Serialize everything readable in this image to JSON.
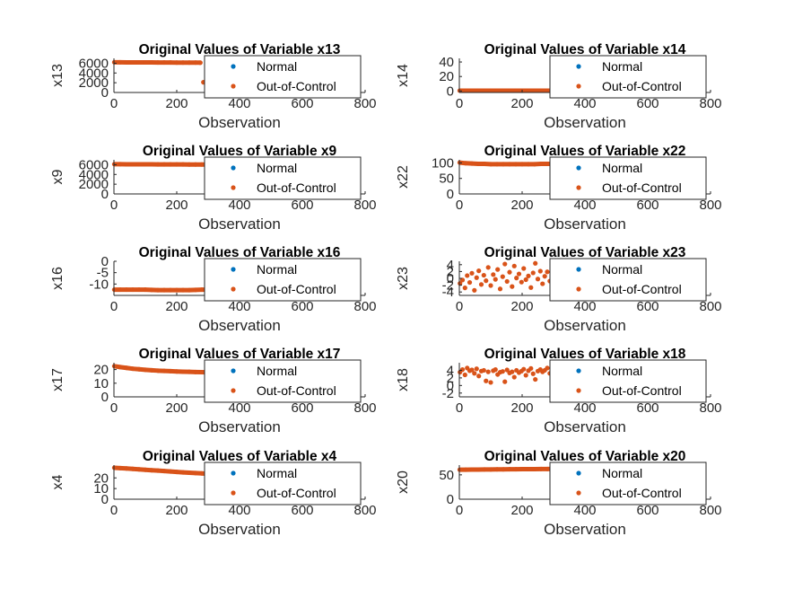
{
  "chart_data": [
    {
      "type": "scatter",
      "title": "Original Values of Variable x13",
      "xlabel": "Observation",
      "ylabel": "x13",
      "xlim": [
        0,
        800
      ],
      "ylim": [
        0,
        7000
      ],
      "xticks": [
        "0",
        "200",
        "400",
        "600",
        "800"
      ],
      "yticks": [
        0,
        2000,
        4000,
        6000
      ],
      "ytick_labels": [
        "0",
        "2000",
        "4000",
        "6000"
      ],
      "legend": [
        "Normal",
        "Out-of-Control"
      ],
      "legend_position": "top-right",
      "series": [
        {
          "name": "Normal",
          "color": "#0072bd",
          "x": [],
          "y": []
        },
        {
          "name": "Out-of-Control",
          "color": "#d95319",
          "x": [
            1,
            20,
            40,
            60,
            80,
            100,
            120,
            140,
            160,
            180,
            200,
            220,
            240,
            260,
            275,
            285
          ],
          "y": [
            6200,
            6190,
            6180,
            6175,
            6170,
            6165,
            6160,
            6150,
            6145,
            6140,
            6135,
            6130,
            6125,
            6120,
            6115,
            2100
          ]
        }
      ]
    },
    {
      "type": "scatter",
      "title": "Original Values of Variable x14",
      "xlabel": "Observation",
      "ylabel": "x14",
      "xlim": [
        0,
        800
      ],
      "ylim": [
        -2,
        45
      ],
      "xticks": [
        "0",
        "200",
        "400",
        "600",
        "800"
      ],
      "yticks": [
        0,
        20,
        40
      ],
      "ytick_labels": [
        "0",
        "20",
        "40"
      ],
      "legend": [
        "Normal",
        "Out-of-Control"
      ],
      "legend_position": "top-right",
      "series": [
        {
          "name": "Normal",
          "color": "#0072bd",
          "x": [],
          "y": []
        },
        {
          "name": "Out-of-Control",
          "color": "#d95319",
          "x": [
            1,
            20,
            40,
            60,
            80,
            100,
            120,
            140,
            160,
            180,
            200,
            220,
            240,
            260,
            280,
            290
          ],
          "y": [
            0.5,
            0.5,
            0.4,
            0.5,
            0.4,
            0.5,
            0.4,
            0.5,
            0.4,
            0.5,
            0.4,
            0.5,
            0.4,
            0.5,
            0.4,
            0.5
          ]
        }
      ]
    },
    {
      "type": "scatter",
      "title": "Original Values of Variable x9",
      "xlabel": "Observation",
      "ylabel": "x9",
      "xlim": [
        0,
        800
      ],
      "ylim": [
        0,
        7000
      ],
      "xticks": [
        "0",
        "200",
        "400",
        "600",
        "800"
      ],
      "yticks": [
        0,
        2000,
        4000,
        6000
      ],
      "ytick_labels": [
        "0",
        "2000",
        "4000",
        "6000"
      ],
      "legend": [
        "Normal",
        "Out-of-Control"
      ],
      "legend_position": "top-right",
      "series": [
        {
          "name": "Normal",
          "color": "#0072bd",
          "x": [],
          "y": []
        },
        {
          "name": "Out-of-Control",
          "color": "#d95319",
          "x": [
            1,
            20,
            40,
            60,
            80,
            100,
            120,
            140,
            160,
            180,
            200,
            220,
            240,
            260,
            280,
            290
          ],
          "y": [
            6100,
            6095,
            6090,
            6085,
            6080,
            6075,
            6070,
            6065,
            6060,
            6055,
            6050,
            6045,
            6040,
            6035,
            6030,
            6025
          ]
        }
      ]
    },
    {
      "type": "scatter",
      "title": "Original Values of Variable x22",
      "xlabel": "Observation",
      "ylabel": "x22",
      "xlim": [
        0,
        800
      ],
      "ylim": [
        0,
        110
      ],
      "xticks": [
        "0",
        "200",
        "400",
        "600",
        "800"
      ],
      "yticks": [
        0,
        50,
        100
      ],
      "ytick_labels": [
        "0",
        "50",
        "100"
      ],
      "legend": [
        "Normal",
        "Out-of-Control"
      ],
      "legend_position": "top-right",
      "series": [
        {
          "name": "Normal",
          "color": "#0072bd",
          "x": [],
          "y": []
        },
        {
          "name": "Out-of-Control",
          "color": "#d95319",
          "x": [
            1,
            20,
            40,
            60,
            80,
            100,
            120,
            140,
            160,
            180,
            200,
            220,
            240,
            260,
            280,
            290
          ],
          "y": [
            101,
            99,
            98,
            97,
            97,
            96,
            96,
            96,
            96,
            96,
            96,
            96,
            96,
            97,
            97,
            97
          ]
        }
      ]
    },
    {
      "type": "scatter",
      "title": "Original Values of Variable x16",
      "xlabel": "Observation",
      "ylabel": "x16",
      "xlim": [
        0,
        800
      ],
      "ylim": [
        -15,
        0
      ],
      "xticks": [
        "0",
        "200",
        "400",
        "600",
        "800"
      ],
      "yticks": [
        -10,
        -5,
        0
      ],
      "ytick_labels": [
        "-10",
        "-5",
        "0"
      ],
      "legend": [
        "Normal",
        "Out-of-Control"
      ],
      "legend_position": "top-right",
      "series": [
        {
          "name": "Normal",
          "color": "#0072bd",
          "x": [],
          "y": []
        },
        {
          "name": "Out-of-Control",
          "color": "#d95319",
          "x": [
            1,
            20,
            40,
            60,
            80,
            100,
            120,
            140,
            160,
            180,
            200,
            220,
            240,
            260,
            280,
            290
          ],
          "y": [
            -12.5,
            -12.5,
            -12.5,
            -12.5,
            -12.5,
            -12.5,
            -12.6,
            -12.7,
            -12.7,
            -12.7,
            -12.7,
            -12.7,
            -12.7,
            -12.6,
            -12.5,
            -12.5
          ]
        }
      ]
    },
    {
      "type": "scatter",
      "title": "Original Values of Variable x23",
      "xlabel": "Observation",
      "ylabel": "x23",
      "xlim": [
        0,
        800
      ],
      "ylim": [
        -5,
        5
      ],
      "xticks": [
        "0",
        "200",
        "400",
        "600",
        "800"
      ],
      "yticks": [
        -4,
        -2,
        0,
        2,
        4
      ],
      "ytick_labels": [
        "-4",
        "-2",
        "0",
        "2",
        "4"
      ],
      "legend": [
        "Normal",
        "Out-of-Control"
      ],
      "legend_position": "top-right",
      "series": [
        {
          "name": "Normal",
          "color": "#0072bd",
          "x": [],
          "y": []
        },
        {
          "name": "Out-of-Control",
          "color": "#d95319",
          "x": [
            2,
            10,
            18,
            25,
            33,
            40,
            48,
            55,
            62,
            70,
            78,
            85,
            92,
            100,
            108,
            115,
            122,
            130,
            138,
            145,
            152,
            160,
            168,
            175,
            182,
            190,
            198,
            205,
            212,
            220,
            228,
            235,
            242,
            250,
            258,
            265,
            272,
            280,
            288
          ],
          "y": [
            -1.5,
            -0.5,
            -2.8,
            0.8,
            -1.2,
            1.5,
            -3.5,
            0.2,
            2.2,
            -1.8,
            0.9,
            -0.7,
            3.2,
            -2.1,
            1.1,
            -0.3,
            2.6,
            -3.1,
            0.5,
            4.2,
            -0.9,
            1.8,
            -2.4,
            3.6,
            0.1,
            1.3,
            -1.1,
            2.9,
            -0.4,
            0.7,
            -2.7,
            1.6,
            4.4,
            -0.2,
            2.1,
            -1.6,
            0.6,
            1.9,
            -0.8
          ]
        }
      ]
    },
    {
      "type": "scatter",
      "title": "Original Values of Variable x17",
      "xlabel": "Observation",
      "ylabel": "x17",
      "xlim": [
        0,
        800
      ],
      "ylim": [
        0,
        25
      ],
      "xticks": [
        "0",
        "200",
        "400",
        "600",
        "800"
      ],
      "yticks": [
        0,
        10,
        20
      ],
      "ytick_labels": [
        "0",
        "10",
        "20"
      ],
      "legend": [
        "Normal",
        "Out-of-Control"
      ],
      "legend_position": "top-right",
      "series": [
        {
          "name": "Normal",
          "color": "#0072bd",
          "x": [],
          "y": []
        },
        {
          "name": "Out-of-Control",
          "color": "#d95319",
          "x": [
            1,
            20,
            40,
            60,
            80,
            100,
            120,
            140,
            160,
            180,
            200,
            220,
            240,
            260,
            280,
            290
          ],
          "y": [
            22.5,
            21.8,
            21.2,
            20.6,
            20.2,
            19.8,
            19.5,
            19.2,
            19.0,
            18.8,
            18.6,
            18.4,
            18.3,
            18.2,
            18.1,
            18.0
          ]
        }
      ]
    },
    {
      "type": "scatter",
      "title": "Original Values of Variable x18",
      "xlabel": "Observation",
      "ylabel": "x18",
      "xlim": [
        0,
        800
      ],
      "ylim": [
        -3,
        6
      ],
      "xticks": [
        "0",
        "200",
        "400",
        "600",
        "800"
      ],
      "yticks": [
        -2,
        0,
        2,
        4
      ],
      "ytick_labels": [
        "-2",
        "0",
        "2",
        "4"
      ],
      "legend": [
        "Normal",
        "Out-of-Control"
      ],
      "legend_position": "top-right",
      "series": [
        {
          "name": "Normal",
          "color": "#0072bd",
          "x": [],
          "y": []
        },
        {
          "name": "Out-of-Control",
          "color": "#d95319",
          "x": [
            2,
            10,
            18,
            25,
            33,
            40,
            48,
            55,
            62,
            70,
            78,
            85,
            92,
            100,
            108,
            115,
            122,
            130,
            138,
            145,
            152,
            160,
            168,
            175,
            182,
            190,
            198,
            205,
            212,
            220,
            228,
            235,
            242,
            250,
            258,
            265,
            272,
            280,
            288
          ],
          "y": [
            3.5,
            4.2,
            2.8,
            4.6,
            3.9,
            4.1,
            3.2,
            4.4,
            2.5,
            3.8,
            4.0,
            1.2,
            3.6,
            0.8,
            3.9,
            4.2,
            2.9,
            3.5,
            3.7,
            1.0,
            4.1,
            3.3,
            3.6,
            2.2,
            4.0,
            3.4,
            3.8,
            4.3,
            2.7,
            3.9,
            4.5,
            3.1,
            1.6,
            3.8,
            4.2,
            3.6,
            4.0,
            4.6,
            3.2
          ]
        }
      ]
    },
    {
      "type": "scatter",
      "title": "Original Values of Variable x4",
      "xlabel": "Observation",
      "ylabel": "x4",
      "xlim": [
        0,
        800
      ],
      "ylim": [
        0,
        32
      ],
      "xticks": [
        "0",
        "200",
        "400",
        "600",
        "800"
      ],
      "yticks": [
        0,
        10,
        20
      ],
      "ytick_labels": [
        "0",
        "10",
        "20"
      ],
      "legend": [
        "Normal",
        "Out-of-Control"
      ],
      "legend_position": "top-right",
      "series": [
        {
          "name": "Normal",
          "color": "#0072bd",
          "x": [],
          "y": []
        },
        {
          "name": "Out-of-Control",
          "color": "#d95319",
          "x": [
            1,
            20,
            40,
            60,
            80,
            100,
            120,
            140,
            160,
            180,
            200,
            220,
            240,
            260,
            280,
            290
          ],
          "y": [
            29.5,
            29.2,
            28.8,
            28.4,
            28.0,
            27.6,
            27.2,
            26.8,
            26.4,
            26.0,
            25.6,
            25.2,
            24.8,
            24.5,
            24.2,
            24.0
          ]
        }
      ]
    },
    {
      "type": "scatter",
      "title": "Original Values of Variable x20",
      "xlabel": "Observation",
      "ylabel": "x20",
      "xlim": [
        0,
        800
      ],
      "ylim": [
        0,
        70
      ],
      "xticks": [
        "0",
        "200",
        "400",
        "600",
        "800"
      ],
      "yticks": [
        0,
        50
      ],
      "ytick_labels": [
        "0",
        "50"
      ],
      "legend": [
        "Normal",
        "Out-of-Control"
      ],
      "legend_position": "top-right",
      "series": [
        {
          "name": "Normal",
          "color": "#0072bd",
          "x": [],
          "y": []
        },
        {
          "name": "Out-of-Control",
          "color": "#d95319",
          "x": [
            1,
            20,
            40,
            60,
            80,
            100,
            120,
            140,
            160,
            180,
            200,
            220,
            240,
            260,
            280,
            290
          ],
          "y": [
            60.5,
            60.6,
            60.8,
            60.9,
            61.0,
            61.1,
            61.2,
            61.3,
            61.4,
            61.5,
            61.6,
            61.7,
            61.8,
            61.9,
            62.0,
            62.1
          ]
        }
      ]
    }
  ]
}
